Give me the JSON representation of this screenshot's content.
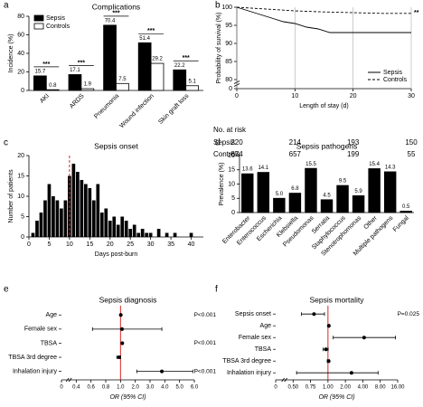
{
  "chart_data": [
    {
      "type": "bar",
      "panel": "a",
      "title": "Complications",
      "y_label": "Incidence (%)",
      "categories": [
        "AKI",
        "ARDS",
        "Pneumonia",
        "Wound infection",
        "Skin graft loss"
      ],
      "series": [
        {
          "name": "Sepsis",
          "color": "#000000",
          "values": [
            15.7,
            17.1,
            70.4,
            51.4,
            22.2
          ]
        },
        {
          "name": "Controls",
          "color": "#ffffff",
          "values": [
            0.8,
            1.9,
            7.5,
            29.2,
            5.1
          ]
        }
      ],
      "annotations": [
        "***",
        "***",
        "***",
        "***",
        "***"
      ],
      "ylim": [
        0,
        80
      ],
      "yticks": [
        0,
        20,
        40,
        60,
        80
      ],
      "legend": "top-left"
    },
    {
      "type": "line",
      "panel": "b",
      "x_label": "Length of stay (d)",
      "y_label": "Probability of survival (%)",
      "xlim": [
        0,
        30
      ],
      "xticks": [
        0,
        10,
        20,
        30
      ],
      "ylim": [
        0,
        100
      ],
      "axis_break": [
        0,
        80
      ],
      "yticks": [
        0,
        80,
        85,
        90,
        95,
        100
      ],
      "grid": "x",
      "series": [
        {
          "name": "Sepsis",
          "color": "#000000",
          "dash": "solid",
          "x": [
            0,
            2,
            4,
            6,
            8,
            10,
            12,
            14,
            16,
            20,
            25,
            30
          ],
          "values": [
            100,
            99,
            98,
            97,
            96,
            95.5,
            94.5,
            94,
            93,
            93,
            93,
            93
          ]
        },
        {
          "name": "Controls",
          "color": "#000000",
          "dash": "dashed",
          "x": [
            0,
            5,
            10,
            15,
            20,
            25,
            30
          ],
          "values": [
            100,
            99.5,
            99,
            98.7,
            98.5,
            98.3,
            98.3
          ]
        }
      ],
      "annotation": "**",
      "legend": "bottom-right",
      "risk_table": {
        "title": "No. at risk",
        "rows": [
          {
            "name": "Sepsis",
            "values": [
              220,
              214,
              193,
              150
            ]
          },
          {
            "name": "Controls",
            "values": [
              874,
              657,
              199,
              55
            ]
          }
        ]
      }
    },
    {
      "type": "histogram",
      "panel": "c",
      "title": "Sepsis onset",
      "x_label": "Days post-burn",
      "y_label": "Number of patients",
      "bins": [
        0.5,
        1.5,
        2.5,
        3.5,
        4.5,
        5.5,
        6.5,
        7.5,
        8.5,
        9.5,
        10.5,
        11.5,
        12.5,
        13.5,
        14.5,
        15.5,
        16.5,
        17.5,
        18.5,
        19.5,
        20.5,
        21.5,
        22.5,
        23.5,
        24.5,
        25.5,
        26.5,
        27.5,
        28.5,
        29.5,
        30.5,
        31.5,
        32.5,
        33.5,
        34.5,
        35.5,
        36.5,
        37.5,
        38.5,
        39.5,
        40.5
      ],
      "values": [
        1,
        4,
        6,
        9,
        13,
        10,
        9,
        7,
        9,
        15,
        18,
        16,
        14,
        13,
        12,
        9,
        13,
        6,
        7,
        4,
        5,
        3,
        5,
        4,
        2,
        3,
        1,
        2,
        1,
        1,
        0,
        2,
        0,
        1,
        0,
        1,
        0,
        0,
        0,
        1
      ],
      "color": "#000000",
      "xlim": [
        0,
        43
      ],
      "xticks": [
        0,
        5,
        10,
        15,
        20,
        25,
        30,
        35,
        40
      ],
      "ylim": [
        0,
        20
      ],
      "yticks": [
        0,
        5,
        10,
        15,
        20
      ],
      "reference_line": {
        "x": 10,
        "color": "#d62728"
      }
    },
    {
      "type": "bar",
      "panel": "d",
      "title": "Sepsis pathogens",
      "y_label": "Prevalence (%)",
      "categories": [
        "Enterobacter",
        "Enterococcus",
        "Escherichia",
        "Klebsiella",
        "Pseudomonas",
        "Serratia",
        "Staphylococcus",
        "Stenotrophomonas",
        "Other",
        "Multiple pathogens",
        "Fungal"
      ],
      "values": [
        13.6,
        14.1,
        5.0,
        6.8,
        15.5,
        4.5,
        9.5,
        5.9,
        15.4,
        14.3,
        0.5
      ],
      "value_labels": [
        "13.6",
        "14.1",
        "5.0",
        "6.8",
        "15.5",
        "4.5",
        "9.5",
        "5.9",
        "15.4",
        "14.3",
        "0.5"
      ],
      "color": "#000000",
      "ylim": [
        0,
        20
      ],
      "yticks": [
        0,
        5,
        10,
        15,
        20
      ]
    },
    {
      "type": "forest",
      "panel": "e",
      "title": "Sepsis diagnosis",
      "x_label": "OR (95% CI)",
      "rows": [
        {
          "label": "Age",
          "value": 1.02,
          "ci": [
            1.01,
            1.03
          ],
          "p": "P<0.001"
        },
        {
          "label": "Female sex",
          "value": 1.1,
          "ci": [
            0.62,
            3.8
          ]
        },
        {
          "label": "TBSA",
          "value": 1.12,
          "ci": [
            1.09,
            1.15
          ],
          "p": "P<0.001"
        },
        {
          "label": "TBSA 3rd degree",
          "value": 0.98,
          "ci": [
            0.95,
            1.01
          ]
        },
        {
          "label": "Inhalation injury",
          "value": 3.8,
          "ci": [
            2.1,
            5.9
          ],
          "p": "P<0.001"
        }
      ],
      "xlim": [
        0,
        6
      ],
      "xticks": [
        0,
        0.4,
        0.6,
        0.8,
        {
          "value": 1,
          "label": "1.0"
        },
        {
          "value": 2,
          "label": "2.0"
        },
        {
          "value": 3,
          "label": "3.0"
        },
        {
          "value": 4,
          "label": "4.0"
        },
        {
          "value": 5,
          "label": "5.0"
        },
        {
          "value": 6,
          "label": "6.0"
        }
      ],
      "reference_line": {
        "x": 1,
        "color": "#d62728"
      }
    },
    {
      "type": "forest",
      "panel": "f",
      "title": "Sepsis mortality",
      "x_label": "OR (95% CI)",
      "rows": [
        {
          "label": "Sepsis onset",
          "value": 0.8,
          "ci": [
            0.62,
            0.95
          ],
          "p": "P=0.025"
        },
        {
          "label": "Age",
          "value": 1.05,
          "ci": [
            1.02,
            1.08
          ]
        },
        {
          "label": "Female sex",
          "value": 4.3,
          "ci": [
            1.3,
            15
          ]
        },
        {
          "label": "TBSA",
          "value": 0.97,
          "ci": [
            0.93,
            1.01
          ]
        },
        {
          "label": "TBSA 3rd degree",
          "value": 1.04,
          "ci": [
            0.99,
            1.08
          ]
        },
        {
          "label": "Inhalation injury",
          "value": 2.7,
          "ci": [
            0.55,
            7.5
          ]
        }
      ],
      "xlim": [
        0,
        16
      ],
      "xticks": [
        0,
        {
          "value": 0.5,
          "label": "0.50"
        },
        0.75,
        {
          "value": 1,
          "label": "1.00"
        },
        {
          "value": 2,
          "label": "2.00"
        },
        {
          "value": 4,
          "label": "4.00"
        },
        {
          "value": 8,
          "label": "8.00"
        },
        {
          "value": 16,
          "label": "16.00"
        }
      ],
      "reference_line": {
        "x": 1,
        "color": "#d62728"
      }
    }
  ]
}
